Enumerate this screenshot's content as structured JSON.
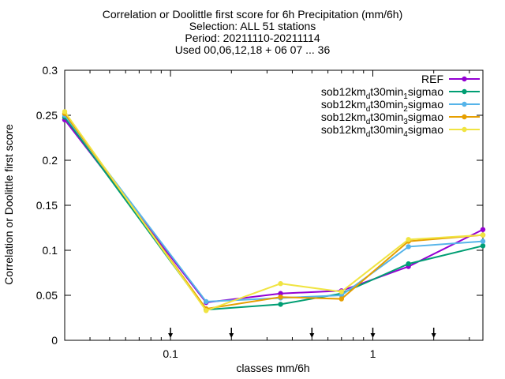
{
  "title_lines": [
    "Correlation or Doolittle first score  for 6h Precipitation (mm/6h)",
    "Selection: ALL     51 stations",
    "Period: 20211110-20211114",
    "Used 00,06,12,18 + 06 07 ... 36"
  ],
  "chart_data": {
    "type": "line",
    "title": "Correlation or Doolittle first score  for 6h Precipitation (mm/6h)",
    "xlabel": "classes mm/6h",
    "ylabel": "Correlation or Doolittle first score",
    "xscale": "log",
    "xlim": [
      0.03,
      3.5
    ],
    "ylim": [
      0,
      0.3
    ],
    "yticks": [
      "0",
      "0.05",
      "0.1",
      "0.15",
      "0.2",
      "0.25",
      "0.3"
    ],
    "xticks": [
      "0.1",
      "1"
    ],
    "grid": false,
    "legend_position": "top-right",
    "class_markers": [
      0.1,
      0.2,
      0.5,
      1,
      2
    ],
    "x": [
      0.03,
      0.15,
      0.35,
      0.7,
      1.5,
      3.5
    ],
    "series": [
      {
        "name": "REF",
        "color": "#9400d3",
        "marker": "circle",
        "legend": {
          "base": "REF",
          "sub": ""
        },
        "values": [
          0.245,
          0.042,
          0.052,
          0.055,
          0.082,
          0.123
        ]
      },
      {
        "name": "sob12km_dt30min_1sigmao",
        "color": "#009e73",
        "marker": "circle",
        "legend": {
          "base": "sob12km",
          "sub": "d",
          "mid": "t30min",
          "sub2": "1",
          "tail": "sigmao"
        },
        "values": [
          0.248,
          0.034,
          0.04,
          0.052,
          0.085,
          0.105
        ]
      },
      {
        "name": "sob12km_dt30min_2sigmao",
        "color": "#56b4e9",
        "marker": "circle",
        "legend": {
          "base": "sob12km",
          "sub": "d",
          "mid": "t30min",
          "sub2": "2",
          "tail": "sigmao"
        },
        "values": [
          0.25,
          0.043,
          0.047,
          0.05,
          0.104,
          0.11
        ]
      },
      {
        "name": "sob12km_dt30min_3sigmao",
        "color": "#e69f00",
        "marker": "circle",
        "legend": {
          "base": "sob12km",
          "sub": "d",
          "mid": "t30min",
          "sub2": "3",
          "tail": "sigmao"
        },
        "values": [
          0.252,
          0.035,
          0.048,
          0.046,
          0.11,
          0.117
        ]
      },
      {
        "name": "sob12km_dt30min_4sigmao",
        "color": "#f0e442",
        "marker": "circle",
        "legend": {
          "base": "sob12km",
          "sub": "d",
          "mid": "t30min",
          "sub2": "4",
          "tail": "sigmao"
        },
        "values": [
          0.254,
          0.033,
          0.063,
          0.054,
          0.112,
          0.117
        ]
      }
    ]
  }
}
